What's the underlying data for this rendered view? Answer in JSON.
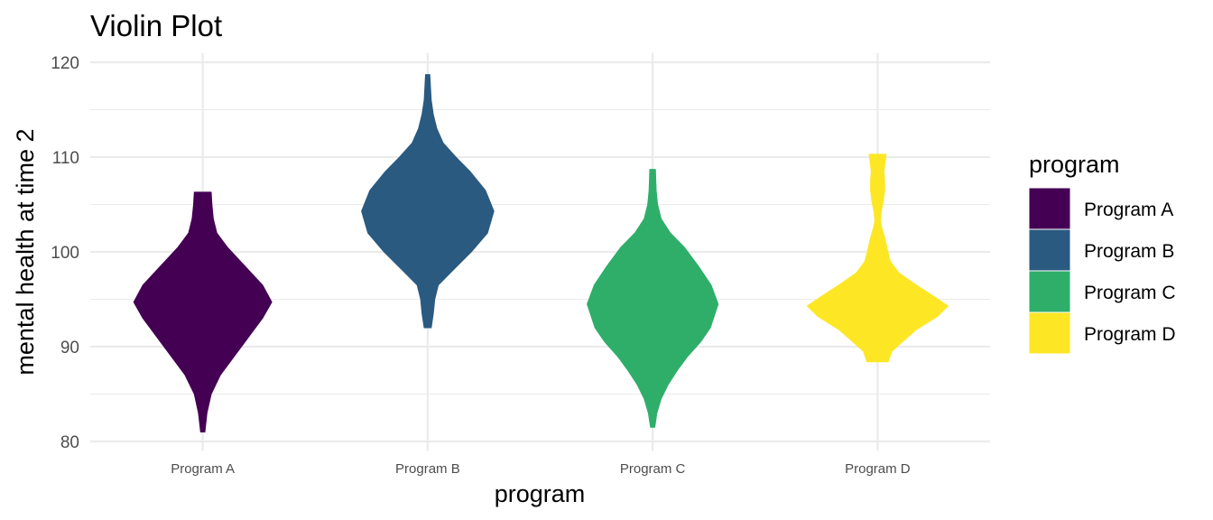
{
  "chart_data": {
    "type": "violin",
    "title": "Violin Plot",
    "xlabel": "program",
    "ylabel": "mental health at time 2",
    "ylim": [
      79,
      121
    ],
    "yticks": [
      80,
      90,
      100,
      110,
      120
    ],
    "grid": true,
    "legend": {
      "title": "program",
      "placement": "right",
      "entries": [
        "Program A",
        "Program B",
        "Program C",
        "Program D"
      ]
    },
    "categories": [
      "Program A",
      "Program B",
      "Program C",
      "Program D"
    ],
    "series": [
      {
        "name": "Program A",
        "color": "#440154",
        "range": [
          81.0,
          106.3
        ],
        "density_profile": [
          [
            81.0,
            0.03
          ],
          [
            83,
            0.06
          ],
          [
            85,
            0.12
          ],
          [
            87,
            0.25
          ],
          [
            89,
            0.45
          ],
          [
            91,
            0.65
          ],
          [
            93,
            0.85
          ],
          [
            94.7,
            0.98
          ],
          [
            96.5,
            0.85
          ],
          [
            98.5,
            0.6
          ],
          [
            100.5,
            0.35
          ],
          [
            102,
            0.2
          ],
          [
            103.5,
            0.15
          ],
          [
            105,
            0.13
          ],
          [
            106.3,
            0.12
          ]
        ]
      },
      {
        "name": "Program B",
        "color": "#2b5a80",
        "range": [
          92.0,
          118.7
        ],
        "density_profile": [
          [
            92.0,
            0.05
          ],
          [
            93.5,
            0.08
          ],
          [
            95,
            0.1
          ],
          [
            96.5,
            0.15
          ],
          [
            98,
            0.35
          ],
          [
            100,
            0.62
          ],
          [
            102,
            0.85
          ],
          [
            104.3,
            0.94
          ],
          [
            106.5,
            0.82
          ],
          [
            108.5,
            0.6
          ],
          [
            110,
            0.4
          ],
          [
            111.5,
            0.22
          ],
          [
            113,
            0.13
          ],
          [
            114.5,
            0.08
          ],
          [
            116,
            0.05
          ],
          [
            118.7,
            0.03
          ]
        ]
      },
      {
        "name": "Program C",
        "color": "#2fae6a",
        "range": [
          81.5,
          108.7
        ],
        "density_profile": [
          [
            81.5,
            0.03
          ],
          [
            83,
            0.06
          ],
          [
            84.5,
            0.12
          ],
          [
            86,
            0.22
          ],
          [
            87.5,
            0.35
          ],
          [
            89,
            0.5
          ],
          [
            90.5,
            0.68
          ],
          [
            92,
            0.82
          ],
          [
            94.5,
            0.93
          ],
          [
            96.5,
            0.83
          ],
          [
            98.5,
            0.65
          ],
          [
            100.5,
            0.45
          ],
          [
            102,
            0.25
          ],
          [
            103.5,
            0.12
          ],
          [
            105,
            0.07
          ],
          [
            106.5,
            0.05
          ],
          [
            108.7,
            0.04
          ]
        ]
      },
      {
        "name": "Program D",
        "color": "#fde725",
        "range": [
          88.4,
          110.3
        ],
        "density_profile": [
          [
            88.4,
            0.15
          ],
          [
            89.5,
            0.2
          ],
          [
            90.5,
            0.35
          ],
          [
            91.8,
            0.55
          ],
          [
            93.2,
            0.85
          ],
          [
            94.3,
            1.0
          ],
          [
            95.3,
            0.8
          ],
          [
            96.5,
            0.55
          ],
          [
            97.8,
            0.3
          ],
          [
            99,
            0.18
          ],
          [
            100.2,
            0.14
          ],
          [
            101.5,
            0.1
          ],
          [
            102.5,
            0.06
          ],
          [
            103.3,
            0.04
          ],
          [
            104.2,
            0.05
          ],
          [
            105.3,
            0.08
          ],
          [
            106.5,
            0.1
          ],
          [
            107.5,
            0.1
          ],
          [
            108.5,
            0.09
          ],
          [
            110.3,
            0.12
          ]
        ]
      }
    ]
  }
}
